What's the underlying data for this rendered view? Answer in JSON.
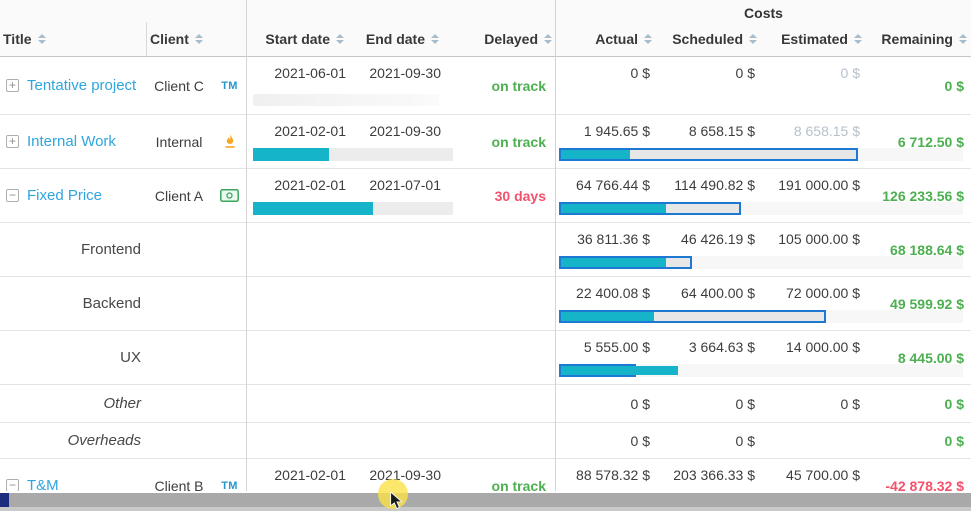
{
  "colors": {
    "accent_blue": "#2ea5dd",
    "bar_teal": "#16b4c8",
    "bar_border_blue": "#1f78d1",
    "positive_green": "#4caf50",
    "negative_red": "#f4516c",
    "muted_gray": "#b7c1cb"
  },
  "header": {
    "costs_group": "Costs",
    "columns": {
      "title": "Title",
      "client": "Client",
      "start": "Start date",
      "end": "End date",
      "delayed": "Delayed",
      "actual": "Actual",
      "scheduled": "Scheduled",
      "estimated": "Estimated",
      "remaining": "Remaining"
    }
  },
  "rows": [
    {
      "type": "project",
      "expander": "plus",
      "title": "Tentative project",
      "client": "Client C",
      "badge": "tm",
      "badge_text": "TM",
      "start": "2021-06-01",
      "end": "2021-09-30",
      "status": "on track",
      "status_color": "green",
      "actual": "0 $",
      "scheduled": "0 $",
      "estimated": "0 $",
      "estimated_muted": true,
      "remaining": "0 $",
      "remaining_color": "green",
      "timeline_pct": null,
      "timeline_placeholder": true,
      "cost_actual_pct": null,
      "cost_scheduled_pct": null
    },
    {
      "type": "project",
      "expander": "plus",
      "title": "Internal Work",
      "client": "Internal",
      "badge": "flame",
      "badge_text": "",
      "start": "2021-02-01",
      "end": "2021-09-30",
      "status": "on track",
      "status_color": "green",
      "actual": "1 945.65 $",
      "scheduled": "8 658.15 $",
      "estimated": "8 658.15 $",
      "estimated_muted": true,
      "remaining": "6 712.50 $",
      "remaining_color": "green",
      "timeline_pct": 38,
      "timeline_placeholder": false,
      "cost_actual_pct": 17,
      "cost_scheduled_pct": 74
    },
    {
      "type": "project",
      "expander": "minus",
      "title": "Fixed Price",
      "client": "Client A",
      "badge": "money",
      "badge_text": "",
      "start": "2021-02-01",
      "end": "2021-07-01",
      "status": "30 days",
      "status_color": "red",
      "actual": "64 766.44 $",
      "scheduled": "114 490.82 $",
      "estimated": "191 000.00 $",
      "estimated_muted": false,
      "remaining": "126 233.56 $",
      "remaining_color": "green",
      "timeline_pct": 60,
      "timeline_placeholder": false,
      "cost_actual_pct": 26,
      "cost_scheduled_pct": 45
    },
    {
      "type": "sub",
      "title": "Frontend",
      "italic": false,
      "actual": "36 811.36 $",
      "scheduled": "46 426.19 $",
      "estimated": "105 000.00 $",
      "estimated_muted": false,
      "remaining": "68 188.64 $",
      "remaining_color": "green",
      "cost_actual_pct": 26,
      "cost_scheduled_pct": 33
    },
    {
      "type": "sub",
      "title": "Backend",
      "italic": false,
      "actual": "22 400.08 $",
      "scheduled": "64 400.00 $",
      "estimated": "72 000.00 $",
      "estimated_muted": false,
      "remaining": "49 599.92 $",
      "remaining_color": "green",
      "cost_actual_pct": 23,
      "cost_scheduled_pct": 66
    },
    {
      "type": "sub",
      "title": "UX",
      "italic": false,
      "actual": "5 555.00 $",
      "scheduled": "3 664.63 $",
      "estimated": "14 000.00 $",
      "estimated_muted": false,
      "remaining": "8 445.00 $",
      "remaining_color": "green",
      "cost_actual_pct": 29,
      "cost_scheduled_pct": 19
    },
    {
      "type": "sub",
      "title": "Other",
      "italic": true,
      "actual": "0 $",
      "scheduled": "0 $",
      "estimated": "0 $",
      "estimated_muted": false,
      "remaining": "0 $",
      "remaining_color": "green",
      "cost_actual_pct": null,
      "cost_scheduled_pct": null
    },
    {
      "type": "sub",
      "title": "Overheads",
      "italic": true,
      "actual": "0 $",
      "scheduled": "0 $",
      "estimated": "",
      "estimated_muted": false,
      "remaining": "0 $",
      "remaining_color": "green",
      "cost_actual_pct": null,
      "cost_scheduled_pct": null
    },
    {
      "type": "project",
      "expander": "minus",
      "title": "T&M",
      "client": "Client B",
      "badge": "tm",
      "badge_text": "TM",
      "start": "2021-02-01",
      "end": "2021-09-30",
      "status": "on track",
      "status_color": "green",
      "actual": "88 578.32 $",
      "scheduled": "203 366.33 $",
      "estimated": "45 700.00 $",
      "estimated_muted": false,
      "remaining": "-42 878.32 $",
      "remaining_color": "red",
      "timeline_pct": null,
      "timeline_placeholder": false,
      "cost_actual_pct": null,
      "cost_scheduled_pct": null
    }
  ]
}
